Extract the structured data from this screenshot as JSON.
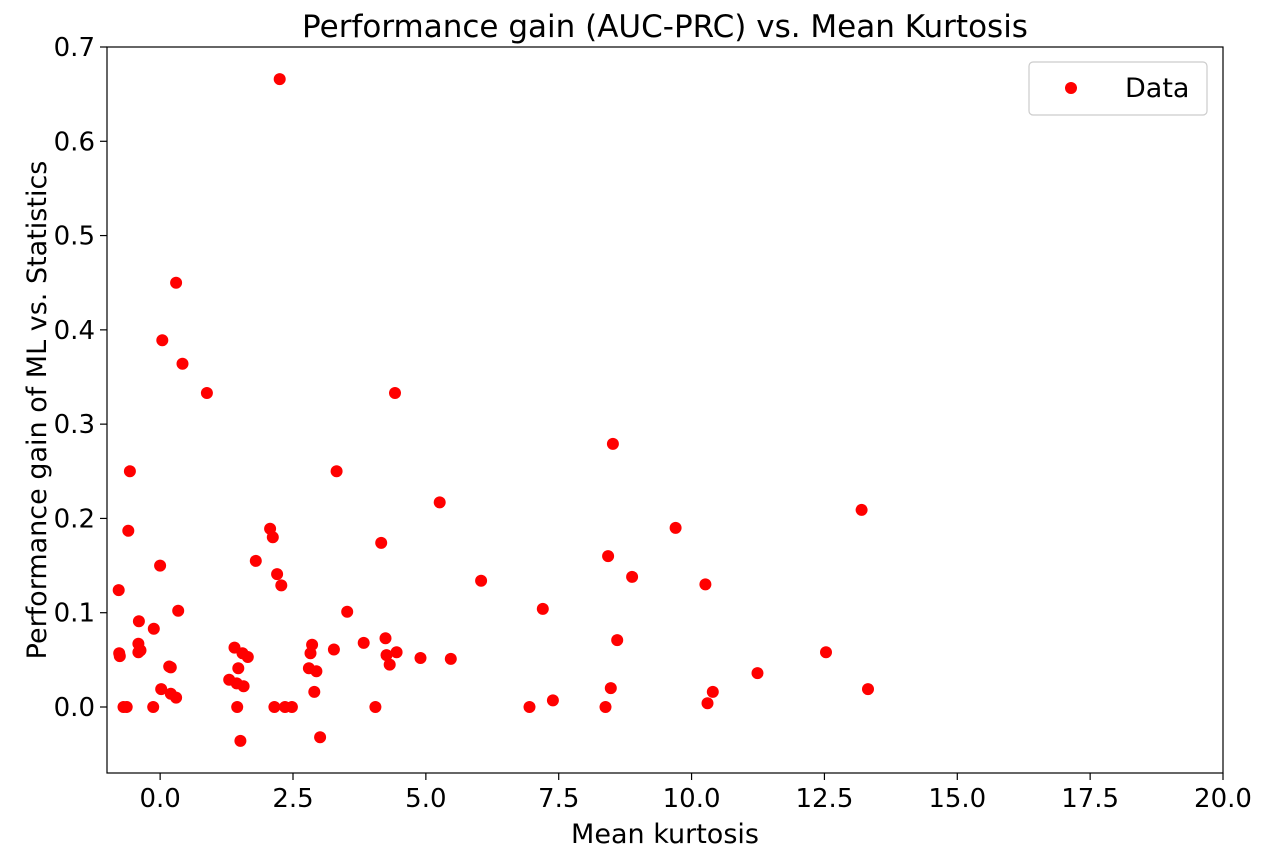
{
  "chart_data": {
    "type": "scatter",
    "title": "Performance gain (AUC-PRC) vs. Mean Kurtosis",
    "xlabel": "Mean kurtosis",
    "ylabel": "Performance gain of ML vs. Statistics",
    "xlim": [
      -1.0,
      20.0
    ],
    "ylim": [
      -0.07,
      0.7
    ],
    "x_ticks": [
      "0.0",
      "2.5",
      "5.0",
      "7.5",
      "10.0",
      "12.5",
      "15.0",
      "17.5",
      "20.0"
    ],
    "y_ticks": [
      "0.0",
      "0.1",
      "0.2",
      "0.3",
      "0.4",
      "0.5",
      "0.6",
      "0.7"
    ],
    "grid": false,
    "legend": {
      "position": "top-right",
      "entries": [
        "Data"
      ]
    },
    "series": [
      {
        "name": "Data",
        "color": "#ff0000",
        "marker": "circle",
        "points": [
          [
            -0.78,
            0.124
          ],
          [
            -0.77,
            0.057
          ],
          [
            -0.76,
            0.054
          ],
          [
            -0.69,
            0.0
          ],
          [
            -0.63,
            0.0
          ],
          [
            -0.6,
            0.187
          ],
          [
            -0.57,
            0.25
          ],
          [
            -0.4,
            0.091
          ],
          [
            -0.41,
            0.067
          ],
          [
            -0.41,
            0.058
          ],
          [
            -0.37,
            0.06
          ],
          [
            -0.12,
            0.083
          ],
          [
            -0.13,
            0.0
          ],
          [
            0.0,
            0.15
          ],
          [
            0.02,
            0.019
          ],
          [
            0.04,
            0.389
          ],
          [
            0.17,
            0.043
          ],
          [
            0.2,
            0.042
          ],
          [
            0.2,
            0.014
          ],
          [
            0.3,
            0.45
          ],
          [
            0.3,
            0.01
          ],
          [
            0.34,
            0.102
          ],
          [
            0.42,
            0.364
          ],
          [
            0.88,
            0.333
          ],
          [
            1.3,
            0.029
          ],
          [
            1.4,
            0.063
          ],
          [
            1.44,
            0.025
          ],
          [
            1.45,
            0.0
          ],
          [
            1.47,
            0.041
          ],
          [
            1.51,
            -0.036
          ],
          [
            1.55,
            0.057
          ],
          [
            1.57,
            0.022
          ],
          [
            1.65,
            0.053
          ],
          [
            1.8,
            0.155
          ],
          [
            2.07,
            0.189
          ],
          [
            2.12,
            0.18
          ],
          [
            2.15,
            0.0
          ],
          [
            2.2,
            0.141
          ],
          [
            2.25,
            0.666
          ],
          [
            2.28,
            0.129
          ],
          [
            2.35,
            0.0
          ],
          [
            2.48,
            0.0
          ],
          [
            2.8,
            0.041
          ],
          [
            2.83,
            0.057
          ],
          [
            2.86,
            0.066
          ],
          [
            2.9,
            0.016
          ],
          [
            2.94,
            0.038
          ],
          [
            3.01,
            -0.032
          ],
          [
            3.27,
            0.061
          ],
          [
            3.32,
            0.25
          ],
          [
            3.52,
            0.101
          ],
          [
            3.83,
            0.068
          ],
          [
            4.05,
            0.0
          ],
          [
            4.16,
            0.174
          ],
          [
            4.24,
            0.073
          ],
          [
            4.26,
            0.055
          ],
          [
            4.32,
            0.045
          ],
          [
            4.42,
            0.333
          ],
          [
            4.45,
            0.058
          ],
          [
            4.9,
            0.052
          ],
          [
            5.26,
            0.217
          ],
          [
            5.47,
            0.051
          ],
          [
            6.04,
            0.134
          ],
          [
            6.95,
            0.0
          ],
          [
            7.2,
            0.104
          ],
          [
            7.39,
            0.007
          ],
          [
            8.38,
            0.0
          ],
          [
            8.43,
            0.16
          ],
          [
            8.48,
            0.02
          ],
          [
            8.52,
            0.279
          ],
          [
            8.6,
            0.071
          ],
          [
            8.88,
            0.138
          ],
          [
            9.7,
            0.19
          ],
          [
            10.26,
            0.13
          ],
          [
            10.3,
            0.004
          ],
          [
            10.4,
            0.016
          ],
          [
            11.24,
            0.036
          ],
          [
            12.53,
            0.058
          ],
          [
            13.2,
            0.209
          ],
          [
            13.32,
            0.019
          ]
        ]
      }
    ]
  }
}
